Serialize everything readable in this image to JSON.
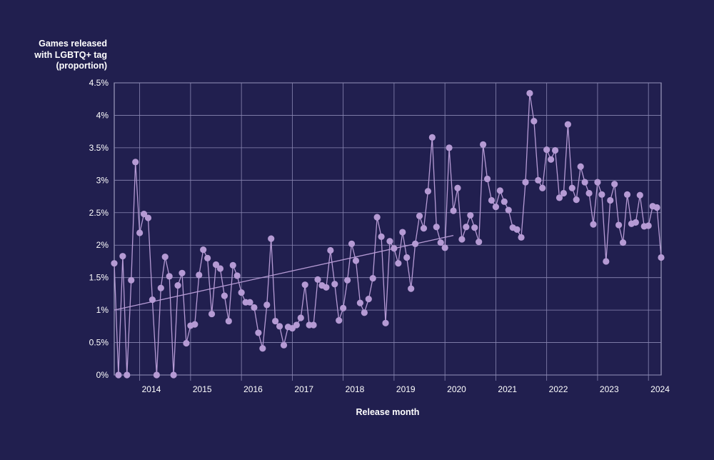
{
  "chart_data": {
    "type": "line",
    "title": "",
    "ylabel": "Games released\nwith LGBTQ+ tag\n(proportion)",
    "xlabel": "Release month",
    "ylim": [
      0,
      4.5
    ],
    "xlim": [
      "2013-07",
      "2024-04"
    ],
    "yticks": [
      "0%",
      "0.5%",
      "1%",
      "1.5%",
      "2%",
      "2.5%",
      "3%",
      "3.5%",
      "4%",
      "4.5%"
    ],
    "xticks": [
      "2014",
      "2015",
      "2016",
      "2017",
      "2018",
      "2019",
      "2020",
      "2021",
      "2022",
      "2023",
      "2024"
    ],
    "grid": true,
    "colors": {
      "background": "#211f4f",
      "series": "#b59ad4",
      "grid": "#8a87b3",
      "text": "#ffffff"
    },
    "series": [
      {
        "x": [
          "2013-07",
          "2013-08",
          "2013-09",
          "2013-10",
          "2013-11",
          "2013-12",
          "2014-01",
          "2014-02",
          "2014-03",
          "2014-04",
          "2014-05",
          "2014-06",
          "2014-07",
          "2014-08",
          "2014-09",
          "2014-10",
          "2014-11",
          "2014-12",
          "2015-01",
          "2015-02",
          "2015-03",
          "2015-04",
          "2015-05",
          "2015-06",
          "2015-07",
          "2015-08",
          "2015-09",
          "2015-10",
          "2015-11",
          "2015-12",
          "2016-01",
          "2016-02",
          "2016-03",
          "2016-04",
          "2016-05",
          "2016-06",
          "2016-07",
          "2016-08",
          "2016-09",
          "2016-10",
          "2016-11",
          "2016-12",
          "2017-01",
          "2017-02",
          "2017-03",
          "2017-04",
          "2017-05",
          "2017-06",
          "2017-07",
          "2017-08",
          "2017-09",
          "2017-10",
          "2017-11",
          "2017-12",
          "2018-01",
          "2018-02",
          "2018-03",
          "2018-04",
          "2018-05",
          "2018-06",
          "2018-07",
          "2018-08",
          "2018-09",
          "2018-10",
          "2018-11",
          "2018-12",
          "2019-01",
          "2019-02",
          "2019-03",
          "2019-04",
          "2019-05",
          "2019-06",
          "2019-07",
          "2019-08",
          "2019-09",
          "2019-10",
          "2019-11",
          "2019-12",
          "2020-01",
          "2020-02",
          "2020-03",
          "2020-04",
          "2020-05",
          "2020-06",
          "2020-07",
          "2020-08",
          "2020-09",
          "2020-10",
          "2020-11",
          "2020-12",
          "2021-01",
          "2021-02",
          "2021-03",
          "2021-04",
          "2021-05",
          "2021-06",
          "2021-07",
          "2021-08",
          "2021-09",
          "2021-10",
          "2021-11",
          "2021-12",
          "2022-01",
          "2022-02",
          "2022-03",
          "2022-04",
          "2022-05",
          "2022-06",
          "2022-07",
          "2022-08",
          "2022-09",
          "2022-10",
          "2022-11",
          "2022-12",
          "2023-01",
          "2023-02",
          "2023-03",
          "2023-04",
          "2023-05",
          "2023-06",
          "2023-07",
          "2023-08",
          "2023-09",
          "2023-10",
          "2023-11",
          "2023-12",
          "2024-01",
          "2024-02",
          "2024-03",
          "2024-04"
        ],
        "values": [
          1.72,
          0,
          1.83,
          0,
          1.46,
          3.28,
          2.19,
          2.48,
          2.42,
          1.16,
          0,
          1.34,
          1.82,
          1.52,
          0,
          1.38,
          1.57,
          0.49,
          0.76,
          0.78,
          1.54,
          1.93,
          1.8,
          0.94,
          1.7,
          1.64,
          1.22,
          0.83,
          1.69,
          1.53,
          1.27,
          1.12,
          1.12,
          1.04,
          0.65,
          0.41,
          1.08,
          2.1,
          0.83,
          0.75,
          0.46,
          0.74,
          0.72,
          0.77,
          0.88,
          1.39,
          0.77,
          0.77,
          1.47,
          1.38,
          1.35,
          1.92,
          1.4,
          0.84,
          1.03,
          1.46,
          2.02,
          1.76,
          1.11,
          0.96,
          1.17,
          1.49,
          2.43,
          2.13,
          0.8,
          2.06,
          1.95,
          1.72,
          2.2,
          1.81,
          1.33,
          2.02,
          2.45,
          2.26,
          2.83,
          3.66,
          2.28,
          2.04,
          1.96,
          3.5,
          2.53,
          2.88,
          2.09,
          2.28,
          2.46,
          2.27,
          2.05,
          3.55,
          3.02,
          2.69,
          2.59,
          2.84,
          2.67,
          2.54,
          2.27,
          2.24,
          2.12,
          2.97,
          4.34,
          3.91,
          3.0,
          2.88,
          3.47,
          3.32,
          3.46,
          2.73,
          2.8,
          3.86,
          2.88,
          2.7,
          3.21,
          2.97,
          2.8,
          2.32,
          2.97,
          2.78,
          1.75,
          2.69,
          2.94,
          2.31,
          2.04,
          2.78,
          2.33,
          2.35,
          2.77,
          2.29,
          2.3,
          2.6,
          2.58,
          1.81
        ]
      }
    ],
    "trendline": {
      "x": [
        "2013-07",
        "2020-03"
      ],
      "y": [
        1.0,
        2.15
      ]
    }
  }
}
